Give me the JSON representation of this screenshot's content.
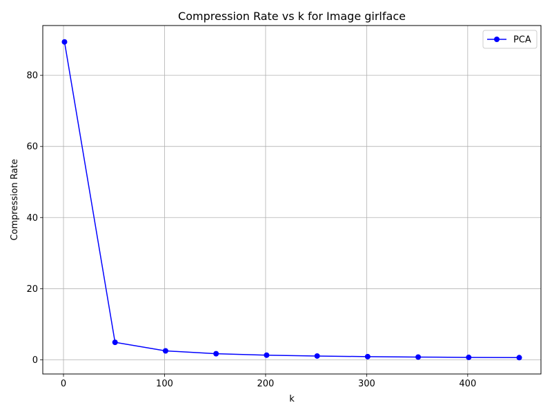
{
  "chart_data": {
    "type": "line",
    "title": "Compression Rate vs k for Image girlface",
    "xlabel": "k",
    "ylabel": "Compression Rate",
    "xlim": [
      -20.5,
      472.5
    ],
    "ylim": [
      -4,
      94
    ],
    "xticks": [
      0,
      100,
      200,
      300,
      400
    ],
    "xtick_labels": [
      "0",
      "100",
      "200",
      "300",
      "400"
    ],
    "yticks": [
      0,
      20,
      40,
      60,
      80
    ],
    "ytick_labels": [
      "0",
      "20",
      "40",
      "60",
      "80"
    ],
    "grid": true,
    "legend_position": "top-right",
    "series": [
      {
        "name": "PCA",
        "color": "#0000ff",
        "marker": "circle",
        "x": [
          1,
          51,
          101,
          151,
          201,
          251,
          301,
          351,
          401,
          451
        ],
        "y": [
          89.4,
          4.9,
          2.5,
          1.7,
          1.3,
          1.05,
          0.88,
          0.76,
          0.67,
          0.6
        ]
      }
    ]
  }
}
